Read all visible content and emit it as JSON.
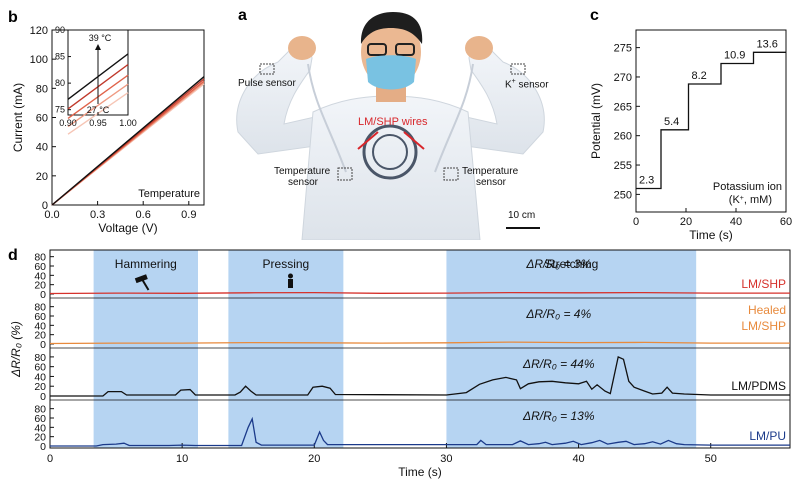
{
  "panel_letters": {
    "a": "a",
    "b": "b",
    "c": "c",
    "d": "d"
  },
  "photo": {
    "pulse_sensor": "Pulse  sensor",
    "k_sensor": "K",
    "k_sensor_sup": "+",
    "k_sensor_suffix": " sensor",
    "wires": "LM/SHP wires",
    "temp_left_1": "Temperature",
    "temp_left_2": "sensor",
    "temp_right_1": "Temperature",
    "temp_right_2": "sensor",
    "scale_bar": "10 cm",
    "colors": {
      "shirt": "#e9eef4",
      "wire_label": "#d8262b"
    }
  },
  "chart_data": [
    {
      "panel": "b",
      "type": "line",
      "xlabel": "Voltage (V)",
      "ylabel": "Current (mA)",
      "xlim": [
        0,
        1.0
      ],
      "ylim": [
        0,
        120
      ],
      "xticks": [
        "0.0",
        "0.3",
        "0.6",
        "0.9"
      ],
      "xtick_values": [
        0,
        0.3,
        0.6,
        0.9
      ],
      "yticks": [
        "0",
        "20",
        "40",
        "60",
        "80",
        "100",
        "120"
      ],
      "ytick_values": [
        0,
        20,
        40,
        60,
        80,
        100,
        120
      ],
      "legend_text": "Temperature",
      "series_slopes": [
        88,
        86.5,
        85,
        84,
        83
      ],
      "series_colors": [
        "#111111",
        "#c0392b",
        "#e0634a",
        "#ef9a82",
        "#f6c5b5"
      ],
      "inset": {
        "xlim": [
          0.9,
          1.0
        ],
        "ylim": [
          74,
          90
        ],
        "xticks": [
          "0.90",
          "0.95",
          "1.00"
        ],
        "xtick_values": [
          0.9,
          0.95,
          1.0
        ],
        "yticks": [
          "75",
          "80",
          "85",
          "90"
        ],
        "ytick_values": [
          75,
          80,
          85,
          90
        ],
        "label_high": "39 °C",
        "label_low": "27 °C",
        "series_slopes": [
          85.5,
          83.5,
          81.5,
          79.8,
          78.2
        ]
      }
    },
    {
      "panel": "c",
      "type": "line",
      "xlabel": "Time (s)",
      "ylabel": "Potential (mV)",
      "xlim": [
        0,
        60
      ],
      "ylim": [
        247,
        278
      ],
      "xticks": [
        "0",
        "20",
        "40",
        "60"
      ],
      "xtick_values": [
        0,
        20,
        40,
        60
      ],
      "yticks": [
        "250",
        "255",
        "260",
        "265",
        "270",
        "275"
      ],
      "ytick_values": [
        250,
        255,
        260,
        265,
        270,
        275
      ],
      "steps": [
        {
          "label": "2.3",
          "t_start": 0,
          "t_end": 10,
          "value": 251
        },
        {
          "label": "5.4",
          "t_start": 10,
          "t_end": 21,
          "value": 261
        },
        {
          "label": "8.2",
          "t_start": 21,
          "t_end": 34,
          "value": 268.8
        },
        {
          "label": "10.9",
          "t_start": 34,
          "t_end": 47,
          "value": 272.3
        },
        {
          "label": "13.6",
          "t_start": 47,
          "t_end": 60,
          "value": 274.2
        }
      ],
      "legend_line1": "Potassium ion",
      "legend_line2_pre": "(K",
      "legend_line2_sup": "+",
      "legend_line2_post": ", mM)"
    },
    {
      "panel": "d",
      "type": "line",
      "xlabel": "Time (s)",
      "ylabel": "ΔR/R₀ (%)",
      "xlim": [
        0,
        56
      ],
      "xticks": [
        "0",
        "10",
        "20",
        "30",
        "40",
        "50"
      ],
      "xtick_values": [
        0,
        10,
        20,
        30,
        40,
        50
      ],
      "ylim": [
        0,
        90
      ],
      "yticks": [
        "0",
        "20",
        "40",
        "60",
        "80"
      ],
      "ytick_values": [
        0,
        20,
        40,
        60,
        80
      ],
      "shaded_regions": [
        {
          "label": "Hammering",
          "start": 3.3,
          "end": 11.2
        },
        {
          "label": "Pressing",
          "start": 13.5,
          "end": 22.2
        },
        {
          "label": "Stretching",
          "start": 30.0,
          "end": 48.9
        }
      ],
      "shade_color": "#b6d4f2",
      "series": [
        {
          "name": "LM/SHP",
          "annotation": "ΔR/R₀ = 3%",
          "color": "#d6312b",
          "points": [
            [
              0,
              1
            ],
            [
              5,
              2
            ],
            [
              10,
              1.5
            ],
            [
              15,
              2.5
            ],
            [
              20,
              3
            ],
            [
              25,
              1.5
            ],
            [
              30,
              2
            ],
            [
              35,
              3
            ],
            [
              40,
              2.5
            ],
            [
              45,
              3
            ],
            [
              50,
              2
            ],
            [
              56,
              2
            ]
          ]
        },
        {
          "name_line1": "Healed",
          "name_line2": "LM/SHP",
          "annotation": "ΔR/R₀ = 4%",
          "color": "#e88a3c",
          "points": [
            [
              0,
              1
            ],
            [
              5,
              2
            ],
            [
              10,
              2
            ],
            [
              15,
              3
            ],
            [
              20,
              2.5
            ],
            [
              25,
              2
            ],
            [
              30,
              2.5
            ],
            [
              35,
              4
            ],
            [
              40,
              3
            ],
            [
              45,
              3.5
            ],
            [
              50,
              2
            ],
            [
              56,
              2
            ]
          ]
        },
        {
          "name": "LM/PDMS",
          "annotation": "ΔR/R₀ = 44%",
          "color": "#111111",
          "points": [
            [
              0,
              0
            ],
            [
              4,
              0
            ],
            [
              4.4,
              9
            ],
            [
              5.4,
              9
            ],
            [
              5.8,
              2
            ],
            [
              9.5,
              2
            ],
            [
              9.9,
              12
            ],
            [
              10.6,
              13
            ],
            [
              11,
              2
            ],
            [
              14,
              2
            ],
            [
              14.4,
              8
            ],
            [
              14.8,
              20
            ],
            [
              15.2,
              10
            ],
            [
              15.6,
              2
            ],
            [
              19.5,
              2
            ],
            [
              19.9,
              18
            ],
            [
              20.6,
              20
            ],
            [
              21.2,
              16
            ],
            [
              21.6,
              3
            ],
            [
              30,
              2
            ],
            [
              31.5,
              7
            ],
            [
              32.5,
              24
            ],
            [
              33.5,
              33
            ],
            [
              34.5,
              38
            ],
            [
              35.3,
              33
            ],
            [
              35.6,
              15
            ],
            [
              36.2,
              25
            ],
            [
              37,
              29
            ],
            [
              38,
              30
            ],
            [
              39,
              27
            ],
            [
              40,
              25
            ],
            [
              40.6,
              30
            ],
            [
              41,
              14
            ],
            [
              41.4,
              23
            ],
            [
              42,
              10
            ],
            [
              42.4,
              5
            ],
            [
              43,
              80
            ],
            [
              43.4,
              75
            ],
            [
              43.8,
              30
            ],
            [
              44.2,
              18
            ],
            [
              45,
              10
            ],
            [
              45.6,
              4
            ],
            [
              46.3,
              6
            ],
            [
              46.7,
              18
            ],
            [
              47.1,
              6
            ],
            [
              48,
              4
            ],
            [
              50,
              2
            ],
            [
              56,
              2
            ]
          ]
        },
        {
          "name": "LM/PU",
          "annotation": "ΔR/R₀ = 13%",
          "color": "#1b3a8a",
          "points": [
            [
              0,
              0
            ],
            [
              3.5,
              0
            ],
            [
              4,
              3
            ],
            [
              5,
              4
            ],
            [
              5.6,
              6
            ],
            [
              6,
              1
            ],
            [
              9,
              1
            ],
            [
              10,
              2
            ],
            [
              11,
              1
            ],
            [
              14.5,
              1
            ],
            [
              15,
              40
            ],
            [
              15.3,
              58
            ],
            [
              15.6,
              8
            ],
            [
              16,
              2
            ],
            [
              20,
              2
            ],
            [
              20.4,
              30
            ],
            [
              20.7,
              12
            ],
            [
              21,
              3
            ],
            [
              30,
              3
            ],
            [
              32.3,
              3
            ],
            [
              32.6,
              12
            ],
            [
              33,
              3
            ],
            [
              35,
              3
            ],
            [
              35.6,
              11
            ],
            [
              36.2,
              3
            ],
            [
              37,
              5
            ],
            [
              37.5,
              8
            ],
            [
              38,
              3
            ],
            [
              39,
              6
            ],
            [
              39.6,
              10
            ],
            [
              40.2,
              3
            ],
            [
              41,
              7
            ],
            [
              41.6,
              12
            ],
            [
              42.2,
              4
            ],
            [
              43,
              8
            ],
            [
              43.6,
              10
            ],
            [
              44.2,
              3
            ],
            [
              45,
              5
            ],
            [
              45.6,
              9
            ],
            [
              46.2,
              4
            ],
            [
              46.8,
              12
            ],
            [
              47.4,
              5
            ],
            [
              48,
              3
            ],
            [
              50,
              2
            ],
            [
              56,
              2
            ]
          ]
        }
      ]
    }
  ]
}
